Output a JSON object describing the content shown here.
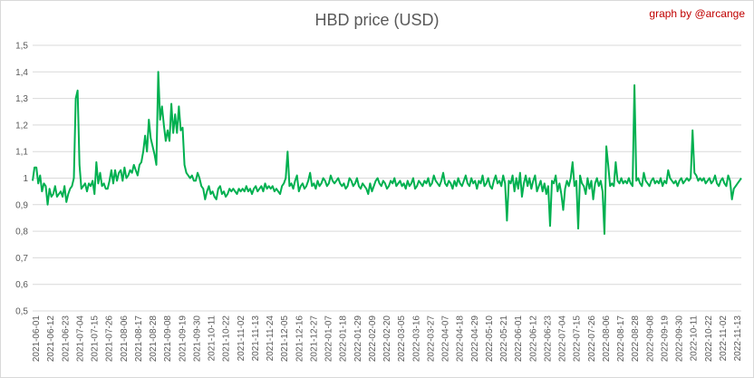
{
  "chart_data": {
    "type": "line",
    "title": "HBD price (USD)",
    "credit": "graph by @arcange",
    "xlabel": "",
    "ylabel": "",
    "ylim": [
      0.5,
      1.5
    ],
    "y_ticks": [
      "0,5",
      "0,6",
      "0,7",
      "0,8",
      "0,9",
      "1",
      "1,1",
      "1,2",
      "1,3",
      "1,4",
      "1,5"
    ],
    "x_ticks": [
      "2021-06-01",
      "2021-06-12",
      "2021-06-23",
      "2021-07-04",
      "2021-07-15",
      "2021-07-26",
      "2021-08-06",
      "2021-08-17",
      "2021-08-28",
      "2021-09-08",
      "2021-09-19",
      "2021-09-30",
      "2021-10-11",
      "2021-10-22",
      "2021-11-02",
      "2021-11-13",
      "2021-11-24",
      "2021-12-05",
      "2021-12-16",
      "2021-12-27",
      "2022-01-07",
      "2022-01-18",
      "2022-01-29",
      "2022-02-09",
      "2022-02-20",
      "2022-03-05",
      "2022-03-16",
      "2022-03-27",
      "2022-04-07",
      "2022-04-18",
      "2022-04-29",
      "2022-05-10",
      "2022-05-21",
      "2022-06-01",
      "2022-06-12",
      "2022-06-23",
      "2022-07-04",
      "2022-07-15",
      "2022-07-26",
      "2022-08-06",
      "2022-08-17",
      "2022-08-28",
      "2022-09-08",
      "2022-09-19",
      "2022-09-30",
      "2022-10-11",
      "2022-10-22",
      "2022-11-02",
      "2022-11-13"
    ],
    "grid": true,
    "legend": "none",
    "line_color": "#00b050",
    "series": [
      {
        "values": [
          0.99,
          1.04,
          1.04,
          0.98,
          1.01,
          0.95,
          0.98,
          0.97,
          0.9,
          0.96,
          0.93,
          0.94,
          0.97,
          0.93,
          0.94,
          0.95,
          0.93,
          0.97,
          0.91,
          0.94,
          0.96,
          0.97,
          1.0,
          1.3,
          1.33,
          1.05,
          0.96,
          0.97,
          0.98,
          0.95,
          0.98,
          0.97,
          0.99,
          0.94,
          1.06,
          0.98,
          1.02,
          0.97,
          0.98,
          0.96,
          0.96,
          0.99,
          1.03,
          0.98,
          1.03,
          0.99,
          1.02,
          1.03,
          0.99,
          1.04,
          1.0,
          1.01,
          1.03,
          1.02,
          1.05,
          1.03,
          1.01,
          1.05,
          1.06,
          1.1,
          1.16,
          1.1,
          1.22,
          1.15,
          1.12,
          1.09,
          1.05,
          1.4,
          1.22,
          1.27,
          1.2,
          1.14,
          1.18,
          1.14,
          1.28,
          1.17,
          1.24,
          1.17,
          1.27,
          1.18,
          1.19,
          1.05,
          1.02,
          1.01,
          1.0,
          1.01,
          0.99,
          0.99,
          1.02,
          1.0,
          0.97,
          0.96,
          0.92,
          0.95,
          0.97,
          0.94,
          0.95,
          0.93,
          0.92,
          0.96,
          0.97,
          0.94,
          0.95,
          0.93,
          0.94,
          0.96,
          0.95,
          0.96,
          0.95,
          0.94,
          0.96,
          0.95,
          0.96,
          0.95,
          0.97,
          0.95,
          0.96,
          0.94,
          0.96,
          0.97,
          0.95,
          0.96,
          0.97,
          0.95,
          0.98,
          0.96,
          0.97,
          0.96,
          0.97,
          0.95,
          0.96,
          0.95,
          0.94,
          0.97,
          0.98,
          1.0,
          1.1,
          0.97,
          0.98,
          0.96,
          0.99,
          1.01,
          0.95,
          0.97,
          0.98,
          0.96,
          0.97,
          0.99,
          1.02,
          0.97,
          0.98,
          0.96,
          0.99,
          0.97,
          0.98,
          1.0,
          0.99,
          0.97,
          0.98,
          1.01,
          0.99,
          0.98,
          0.99,
          1.0,
          0.98,
          0.97,
          0.98,
          0.96,
          0.97,
          1.0,
          0.99,
          0.97,
          0.98,
          1.0,
          0.97,
          0.96,
          0.98,
          0.97,
          0.96,
          0.94,
          0.98,
          0.95,
          0.97,
          0.99,
          1.0,
          0.98,
          0.97,
          0.99,
          0.98,
          0.96,
          0.97,
          0.99,
          0.98,
          1.0,
          0.97,
          0.98,
          0.99,
          0.97,
          0.98,
          0.96,
          0.99,
          0.97,
          0.98,
          1.0,
          0.96,
          0.97,
          0.99,
          0.98,
          0.97,
          0.99,
          0.98,
          1.0,
          0.97,
          0.98,
          1.01,
          0.99,
          0.98,
          0.97,
          0.99,
          1.02,
          0.98,
          0.97,
          0.99,
          0.98,
          0.96,
          0.99,
          0.97,
          1.0,
          0.98,
          0.97,
          0.99,
          1.01,
          0.98,
          0.97,
          1.0,
          0.98,
          0.99,
          0.96,
          0.99,
          0.98,
          1.01,
          0.97,
          0.98,
          1.0,
          0.97,
          0.96,
          0.99,
          1.01,
          0.98,
          0.99,
          0.97,
          1.01,
          0.98,
          0.84,
          0.99,
          0.98,
          1.01,
          0.95,
          1.0,
          0.96,
          1.02,
          0.93,
          0.98,
          1.01,
          0.97,
          1.0,
          0.96,
          0.99,
          1.01,
          0.95,
          0.97,
          0.99,
          0.95,
          0.98,
          0.94,
          0.97,
          0.82,
          0.99,
          0.98,
          1.01,
          0.95,
          0.98,
          0.94,
          0.88,
          0.96,
          0.99,
          0.97,
          1.0,
          1.06,
          0.97,
          0.99,
          0.81,
          1.01,
          0.98,
          0.97,
          0.94,
          1.0,
          0.96,
          0.99,
          0.92,
          0.98,
          1.0,
          0.97,
          0.99,
          0.95,
          0.79,
          1.12,
          1.05,
          0.97,
          0.98,
          0.97,
          1.06,
          0.99,
          0.98,
          1.0,
          0.98,
          0.99,
          0.98,
          1.0,
          0.98,
          0.97,
          1.35,
          0.99,
          1.0,
          0.98,
          0.97,
          1.02,
          0.99,
          0.98,
          0.97,
          0.99,
          1.0,
          0.98,
          0.99,
          0.98,
          1.0,
          0.97,
          0.99,
          0.98,
          1.03,
          1.0,
          0.99,
          0.98,
          0.99,
          0.97,
          0.99,
          1.0,
          0.98,
          0.99,
          1.0,
          0.99,
          1.0,
          1.18,
          1.02,
          1.01,
          0.99,
          1.0,
          0.99,
          1.0,
          0.98,
          0.99,
          1.0,
          0.98,
          0.99,
          1.01,
          0.98,
          0.97,
          0.99,
          1.0,
          0.98,
          0.97,
          1.01,
          0.99,
          0.92,
          0.96,
          0.97,
          0.98,
          0.99,
          1.0
        ]
      }
    ]
  }
}
